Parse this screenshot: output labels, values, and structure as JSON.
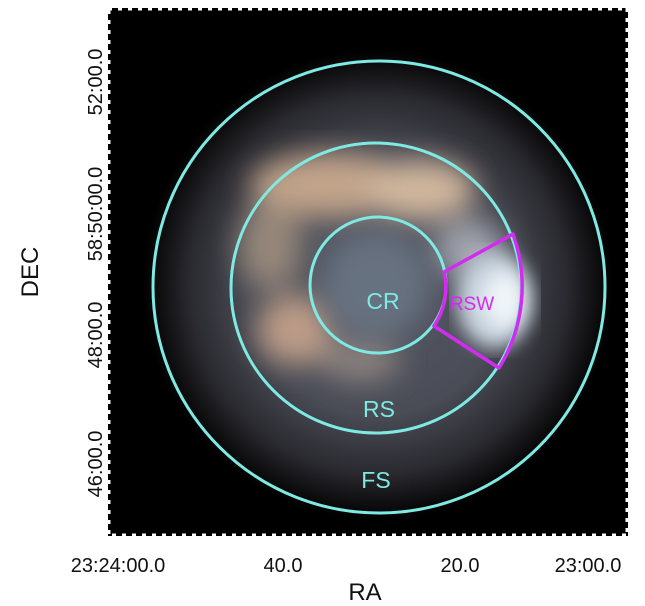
{
  "axes": {
    "xlabel": "RA",
    "ylabel": "DEC",
    "x_ticks": [
      "23:24:00.0",
      "40.0",
      "20.0",
      "23:00.0"
    ],
    "y_ticks": [
      "46:00.0",
      "48:00.0",
      "58:50:00.0",
      "52:00.0"
    ]
  },
  "regions": {
    "inner": "CR",
    "middle": "RS",
    "outer": "FS",
    "wedge": "RSW"
  },
  "colors": {
    "circle": "#7fe9e3",
    "wedge": "#d22cf0",
    "background": "#000000",
    "frame": "#ffffff"
  }
}
